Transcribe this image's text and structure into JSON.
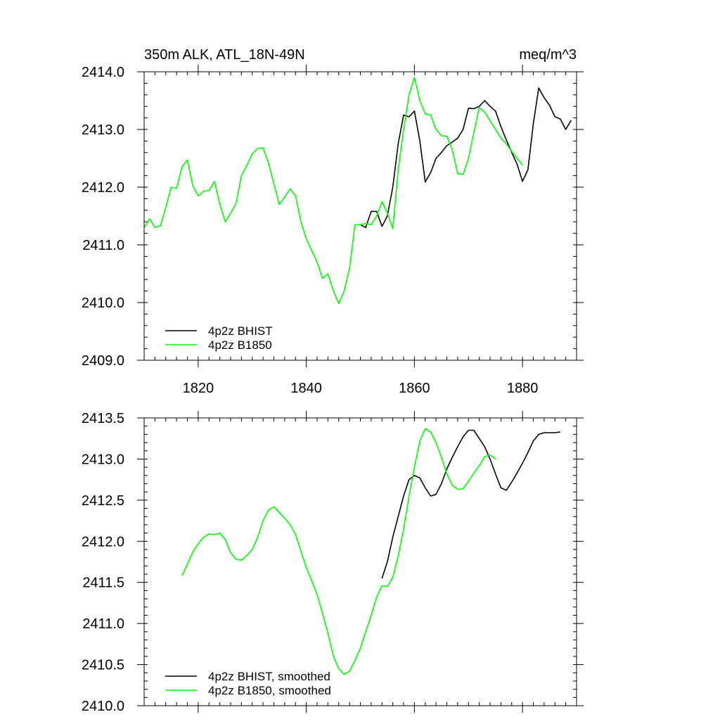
{
  "chart_data": [
    {
      "type": "line",
      "title_left": "350m ALK, ATL_18N-49N",
      "title_right": "meq/m^3",
      "xlabel": "",
      "ylabel": "",
      "xlim": [
        1810,
        1890
      ],
      "ylim": [
        2409.0,
        2414.0
      ],
      "xticks": [
        1820,
        1840,
        1860,
        1880
      ],
      "xtick_labels": [
        "1820",
        "1840",
        "1860",
        "1880"
      ],
      "yticks": [
        2409.0,
        2410.0,
        2411.0,
        2412.0,
        2413.0,
        2414.0
      ],
      "ytick_labels": [
        "2409.0",
        "2410.0",
        "2411.0",
        "2412.0",
        "2413.0",
        "2414.0"
      ],
      "legend_position": "bottom-left",
      "series": [
        {
          "name": "4p2z BHIST",
          "color": "#000000",
          "x": [
            1850,
            1851,
            1852,
            1853,
            1854,
            1855,
            1856,
            1857,
            1858,
            1859,
            1860,
            1861,
            1862,
            1863,
            1864,
            1865,
            1866,
            1867,
            1868,
            1869,
            1870,
            1871,
            1872,
            1873,
            1874,
            1875,
            1876,
            1877,
            1878,
            1879,
            1880,
            1881,
            1882,
            1883,
            1884,
            1885,
            1886,
            1887,
            1888,
            1889
          ],
          "y": [
            2411.35,
            2411.3,
            2411.58,
            2411.58,
            2411.32,
            2411.5,
            2412.0,
            2412.75,
            2413.25,
            2413.22,
            2413.32,
            2412.8,
            2412.09,
            2412.25,
            2412.5,
            2412.6,
            2412.72,
            2412.78,
            2412.85,
            2413.0,
            2413.37,
            2413.36,
            2413.4,
            2413.5,
            2413.4,
            2413.32,
            2413.05,
            2412.82,
            2412.6,
            2412.4,
            2412.1,
            2412.3,
            2413.1,
            2413.72,
            2413.55,
            2413.42,
            2413.22,
            2413.18,
            2413.0,
            2413.16
          ]
        },
        {
          "name": "4p2z B1850",
          "color": "#00ff00",
          "x": [
            1810,
            1811,
            1812,
            1813,
            1814,
            1815,
            1816,
            1817,
            1818,
            1819,
            1820,
            1821,
            1822,
            1823,
            1824,
            1825,
            1826,
            1827,
            1828,
            1829,
            1830,
            1831,
            1832,
            1833,
            1834,
            1835,
            1836,
            1837,
            1838,
            1839,
            1840,
            1841,
            1842,
            1843,
            1844,
            1845,
            1846,
            1847,
            1848,
            1849,
            1850,
            1851,
            1852,
            1853,
            1854,
            1855,
            1856,
            1857,
            1858,
            1859,
            1860,
            1861,
            1862,
            1863,
            1864,
            1865,
            1866,
            1867,
            1868,
            1869,
            1870,
            1871,
            1872,
            1873,
            1874,
            1875,
            1876,
            1877,
            1878,
            1879,
            1880
          ],
          "y": [
            2411.3,
            2411.45,
            2411.3,
            2411.33,
            2411.65,
            2412.0,
            2411.98,
            2412.35,
            2412.47,
            2412.02,
            2411.85,
            2411.93,
            2411.94,
            2412.1,
            2411.7,
            2411.4,
            2411.55,
            2411.72,
            2412.2,
            2412.38,
            2412.58,
            2412.67,
            2412.68,
            2412.42,
            2412.05,
            2411.7,
            2411.83,
            2411.97,
            2411.85,
            2411.4,
            2411.1,
            2410.9,
            2410.7,
            2410.42,
            2410.5,
            2410.2,
            2409.98,
            2410.2,
            2410.6,
            2411.35,
            2411.35,
            2411.37,
            2411.35,
            2411.5,
            2411.75,
            2411.55,
            2411.28,
            2412.3,
            2413.0,
            2413.6,
            2413.9,
            2413.5,
            2413.27,
            2413.25,
            2413.0,
            2412.89,
            2412.88,
            2412.65,
            2412.23,
            2412.22,
            2412.5,
            2412.95,
            2413.38,
            2413.3,
            2413.15,
            2413.0,
            2412.85,
            2412.75,
            2412.62,
            2412.5,
            2412.38
          ]
        }
      ]
    },
    {
      "type": "line",
      "title_left": "",
      "title_right": "",
      "xlabel": "",
      "ylabel": "",
      "xlim": [
        1810,
        1890
      ],
      "ylim": [
        2410.0,
        2413.5
      ],
      "xticks": [
        1820,
        1840,
        1860,
        1880
      ],
      "xtick_labels": [],
      "yticks": [
        2410.0,
        2410.5,
        2411.0,
        2411.5,
        2412.0,
        2412.5,
        2413.0,
        2413.5
      ],
      "ytick_labels": [
        "2410.0",
        "2410.5",
        "2411.0",
        "2411.5",
        "2412.0",
        "2412.5",
        "2413.0",
        "2413.5"
      ],
      "legend_position": "bottom-left",
      "series": [
        {
          "name": "4p2z BHIST, smoothed",
          "color": "#000000",
          "x": [
            1854,
            1855,
            1856,
            1857,
            1858,
            1859,
            1860,
            1861,
            1862,
            1863,
            1864,
            1865,
            1866,
            1867,
            1868,
            1869,
            1870,
            1871,
            1872,
            1873,
            1874,
            1875,
            1876,
            1877,
            1878,
            1879,
            1880,
            1881,
            1882,
            1883,
            1884,
            1885,
            1886,
            1887
          ],
          "y": [
            2411.55,
            2411.75,
            2412.05,
            2412.3,
            2412.55,
            2412.75,
            2412.8,
            2412.77,
            2412.65,
            2412.55,
            2412.57,
            2412.7,
            2412.88,
            2413.02,
            2413.15,
            2413.27,
            2413.35,
            2413.35,
            2413.25,
            2413.15,
            2413.0,
            2412.82,
            2412.65,
            2412.62,
            2412.72,
            2412.83,
            2412.95,
            2413.08,
            2413.22,
            2413.3,
            2413.32,
            2413.32,
            2413.32,
            2413.33
          ]
        },
        {
          "name": "4p2z B1850, smoothed",
          "color": "#00ff00",
          "x": [
            1817,
            1818,
            1819,
            1820,
            1821,
            1822,
            1823,
            1824,
            1825,
            1826,
            1827,
            1828,
            1829,
            1830,
            1831,
            1832,
            1833,
            1834,
            1835,
            1836,
            1837,
            1838,
            1839,
            1840,
            1841,
            1842,
            1843,
            1844,
            1845,
            1846,
            1847,
            1848,
            1849,
            1850,
            1851,
            1852,
            1853,
            1854,
            1855,
            1856,
            1857,
            1858,
            1859,
            1860,
            1861,
            1862,
            1863,
            1864,
            1865,
            1866,
            1867,
            1868,
            1869,
            1870,
            1871,
            1872,
            1873,
            1874,
            1875
          ],
          "y": [
            2411.58,
            2411.72,
            2411.87,
            2411.97,
            2412.05,
            2412.09,
            2412.08,
            2412.1,
            2412.02,
            2411.86,
            2411.78,
            2411.77,
            2411.83,
            2411.9,
            2412.05,
            2412.25,
            2412.38,
            2412.42,
            2412.35,
            2412.28,
            2412.2,
            2412.08,
            2411.88,
            2411.68,
            2411.52,
            2411.35,
            2411.12,
            2410.88,
            2410.6,
            2410.45,
            2410.38,
            2410.42,
            2410.55,
            2410.7,
            2410.9,
            2411.1,
            2411.32,
            2411.46,
            2411.45,
            2411.56,
            2411.82,
            2412.15,
            2412.55,
            2412.9,
            2413.22,
            2413.37,
            2413.33,
            2413.2,
            2413.02,
            2412.82,
            2412.68,
            2412.63,
            2412.64,
            2412.73,
            2412.83,
            2412.92,
            2413.03,
            2413.05,
            2413.0
          ]
        }
      ]
    }
  ]
}
